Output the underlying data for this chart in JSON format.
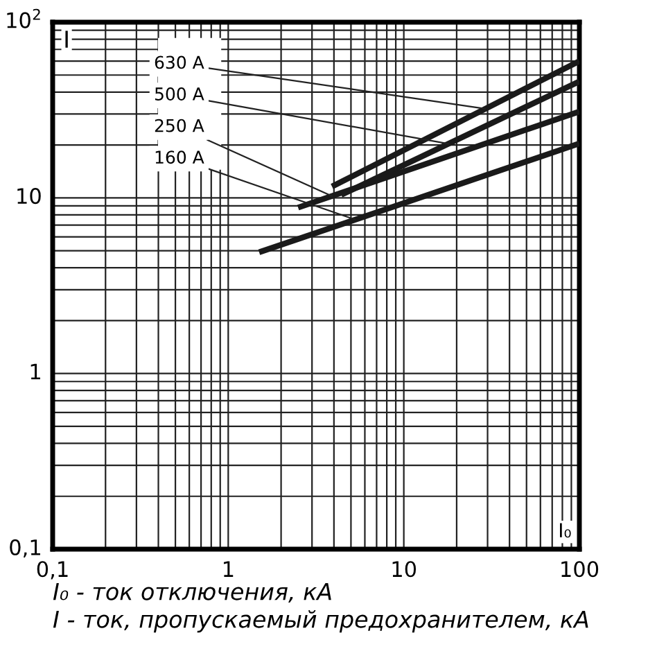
{
  "chart_data": {
    "type": "line",
    "xlabel": "I₀",
    "ylabel": "I",
    "log": "xy",
    "grid": true,
    "marker": "none",
    "line_style": "solid",
    "xlim": [
      0.1,
      100
    ],
    "ylim": [
      0.1,
      100
    ],
    "xticks": [
      {
        "value": 0.1,
        "label": "0,1"
      },
      1,
      10,
      100
    ],
    "yticks": [
      {
        "value": 0.1,
        "label": "0,1"
      },
      1,
      10,
      {
        "value": 100,
        "label": "10$^{2}$"
      }
    ],
    "series": [
      {
        "name": "630 A",
        "color": "#1a1a1a",
        "x": [
          3.9,
          100
        ],
        "values": [
          11.6,
          60
        ]
      },
      {
        "name": "500 A",
        "color": "#1a1a1a",
        "x": [
          4.4,
          100
        ],
        "values": [
          10.4,
          46
        ]
      },
      {
        "name": "250 A",
        "color": "#1a1a1a",
        "x": [
          2.5,
          100
        ],
        "values": [
          8.8,
          31
        ]
      },
      {
        "name": "160 A",
        "color": "#1a1a1a",
        "x": [
          1.5,
          100
        ],
        "values": [
          4.9,
          20.4
        ]
      }
    ],
    "annotations": [
      "I₀ - ток отключения, кА",
      "I - ток, пропускаемый предохранителем, кА"
    ]
  }
}
